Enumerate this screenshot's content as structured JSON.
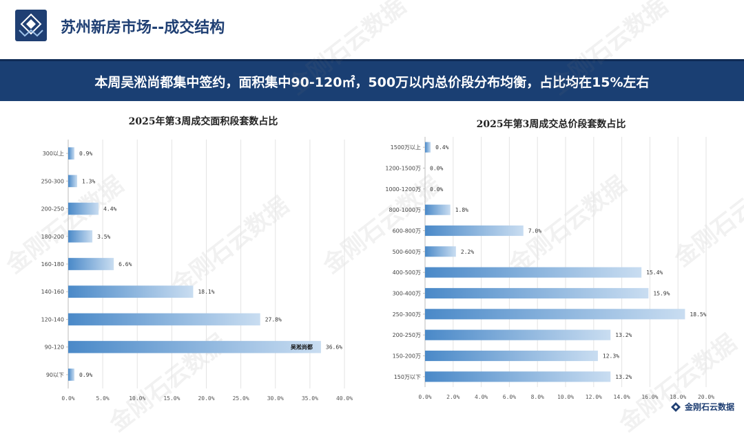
{
  "header": {
    "title": "苏州新房市场--成交结构",
    "logo_icon": "diamond-logo-icon"
  },
  "banner": {
    "text": "本周吴淞尚都集中签约，面积集中90-120㎡，500万以内总价段分布均衡，占比均在15%左右"
  },
  "watermark": {
    "text": "金刚石云数据"
  },
  "footer": {
    "brand": "金刚石云数据",
    "brand_icon": "diamond-logo-icon"
  },
  "colors": {
    "navy": "#1a3f73",
    "bar_dark": "#4a89c8",
    "bar_light": "#c9ddf1"
  },
  "chart_data": [
    {
      "type": "bar",
      "orientation": "horizontal",
      "title": "2025年第3周成交面积段套数占比",
      "categories": [
        "300以上",
        "250-300",
        "200-250",
        "180-200",
        "160-180",
        "140-160",
        "120-140",
        "90-120",
        "90以下"
      ],
      "values": [
        0.9,
        1.3,
        4.4,
        3.5,
        6.6,
        18.1,
        27.8,
        36.6,
        0.9
      ],
      "value_labels": [
        "0.9%",
        "1.3%",
        "4.4%",
        "3.5%",
        "6.6%",
        "18.1%",
        "27.8%",
        "36.6%",
        "0.9%"
      ],
      "xlim": [
        0,
        40
      ],
      "ticks": [
        "0.0%",
        "5.0%",
        "10.0%",
        "15.0%",
        "20.0%",
        "25.0%",
        "30.0%",
        "35.0%",
        "40.0%"
      ],
      "annotation": {
        "category": "90-120",
        "text": "吴淞尚都"
      },
      "grid": true
    },
    {
      "type": "bar",
      "orientation": "horizontal",
      "title": "2025年第3周成交总价段套数占比",
      "categories": [
        "1500万以上",
        "1200-1500万",
        "1000-1200万",
        "800-1000万",
        "600-800万",
        "500-600万",
        "400-500万",
        "300-400万",
        "250-300万",
        "200-250万",
        "150-200万",
        "150万以下"
      ],
      "values": [
        0.4,
        0.0,
        0.0,
        1.8,
        7.0,
        2.2,
        15.4,
        15.9,
        18.5,
        13.2,
        12.3,
        13.2
      ],
      "value_labels": [
        "0.4%",
        "0.0%",
        "0.0%",
        "1.8%",
        "7.0%",
        "2.2%",
        "15.4%",
        "15.9%",
        "18.5%",
        "13.2%",
        "12.3%",
        "13.2%"
      ],
      "xlim": [
        0,
        20
      ],
      "ticks": [
        "0.0%",
        "2.0%",
        "4.0%",
        "6.0%",
        "8.0%",
        "10.0%",
        "12.0%",
        "14.0%",
        "16.0%",
        "18.0%",
        "20.0%"
      ],
      "grid": true
    }
  ]
}
